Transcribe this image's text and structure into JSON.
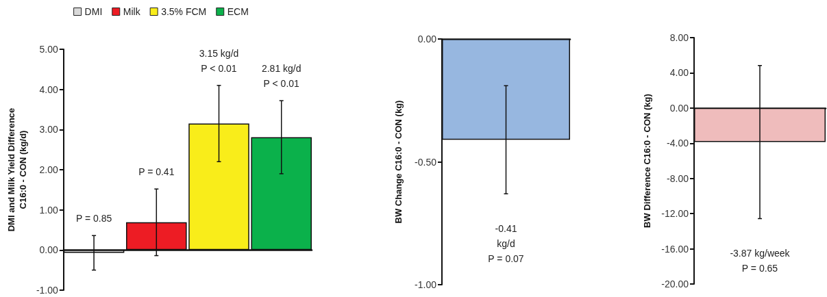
{
  "chart_data": [
    {
      "type": "bar",
      "ylabel": "DMI and Milk Yield Difference\nC16:0 - CON (kg/d)",
      "categories": [
        null
      ],
      "legend": "top",
      "ylim": [
        -1,
        5
      ],
      "yticks": [
        {
          "value": -1,
          "label": "-1.00"
        },
        {
          "value": 0,
          "label": "0.00"
        },
        {
          "value": 1,
          "label": "1.00"
        },
        {
          "value": 2,
          "label": "2.00"
        },
        {
          "value": 3,
          "label": "3.00"
        },
        {
          "value": 4,
          "label": "4.00"
        },
        {
          "value": 5,
          "label": "5.00"
        }
      ],
      "annotations": [
        "P = 0.85",
        "P = 0.41",
        "3.15 kg/d\nP < 0.01",
        "2.81 kg/d\nP < 0.01"
      ],
      "series": [
        {
          "name": "DMI",
          "color": "#d9d9d9",
          "values": [
            -0.07
          ],
          "errors": [
            0.43
          ]
        },
        {
          "name": "Milk",
          "color": "#ed1c24",
          "values": [
            0.69
          ],
          "errors": [
            0.83
          ]
        },
        {
          "name": "3.5% FCM",
          "color": "#f9ed1a",
          "values": [
            3.15
          ],
          "errors": [
            0.95
          ]
        },
        {
          "name": "ECM",
          "color": "#0bb14b",
          "values": [
            2.81
          ],
          "errors": [
            0.91
          ]
        }
      ]
    },
    {
      "type": "bar",
      "ylabel": "BW Change C16:0 - CON (kg)",
      "categories": [
        null
      ],
      "ylim": [
        -1,
        0
      ],
      "yticks": [
        {
          "value": -1,
          "label": "-1.00"
        },
        {
          "value": -0.5,
          "label": "-0.50"
        },
        {
          "value": 0,
          "label": "0.00"
        }
      ],
      "annotations": [
        "-0.41\nkg/d\nP = 0.07"
      ],
      "series": [
        {
          "color": "#97b7e0",
          "values": [
            -0.41
          ],
          "errors": [
            0.22
          ]
        }
      ]
    },
    {
      "type": "bar",
      "ylabel": "BW Difference C16:0 - CON (kg)",
      "categories": [
        null
      ],
      "ylim": [
        -20,
        8
      ],
      "yticks": [
        {
          "value": -20,
          "label": "-20.00"
        },
        {
          "value": -16,
          "label": "-16.00"
        },
        {
          "value": -12,
          "label": "-12.00"
        },
        {
          "value": -8,
          "label": "-8.00"
        },
        {
          "value": -4,
          "label": "-4.00"
        },
        {
          "value": 0,
          "label": "0.00"
        },
        {
          "value": 4,
          "label": "4.00"
        },
        {
          "value": 8,
          "label": "8.00"
        }
      ],
      "annotations": [
        "-3.87 kg/week\nP = 0.65"
      ],
      "series": [
        {
          "color": "#efbcbc",
          "values": [
            -3.87
          ],
          "errors": [
            8.7
          ]
        }
      ]
    }
  ]
}
